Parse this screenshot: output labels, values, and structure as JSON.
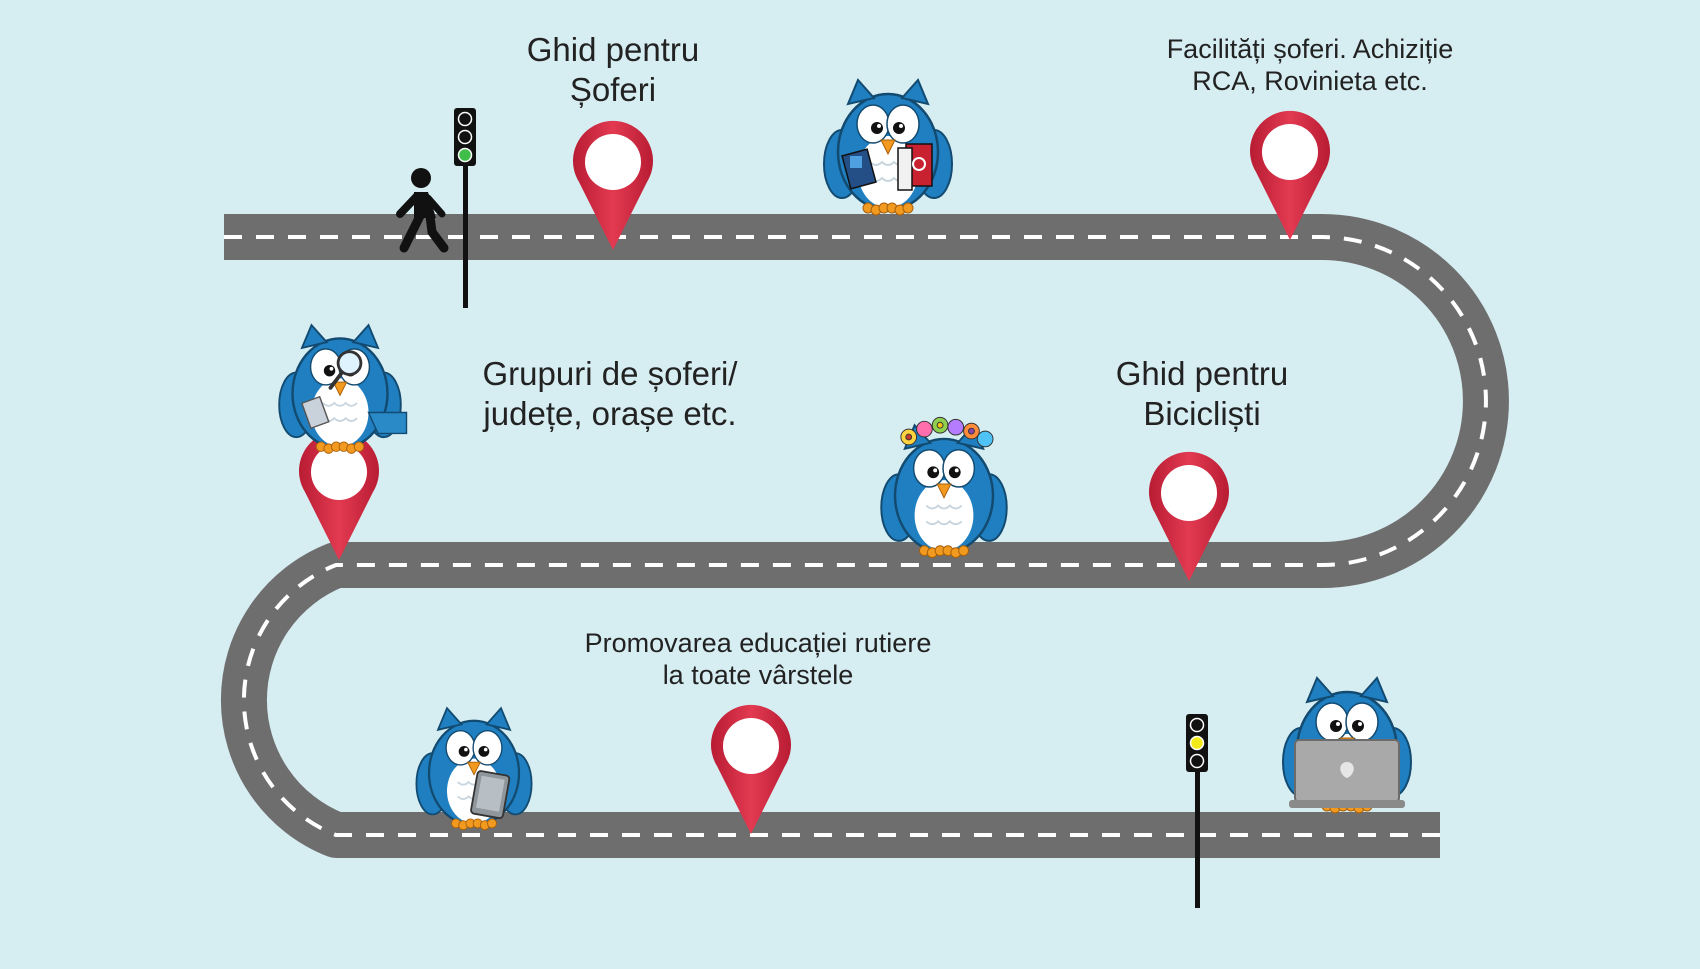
{
  "stops": [
    {
      "id": "ghid-soferi",
      "lines": [
        "Ghid pentru",
        "Șoferi"
      ]
    },
    {
      "id": "facilitati",
      "lines": [
        "Facilități șoferi. Achiziție",
        "RCA, Rovinieta etc."
      ]
    },
    {
      "id": "grupuri",
      "lines": [
        "Grupuri de șoferi/",
        "județe, orașe etc."
      ]
    },
    {
      "id": "ghid-biciclisti",
      "lines": [
        "Ghid pentru",
        "Bicicliști"
      ]
    },
    {
      "id": "promovarea",
      "lines": [
        "Promovarea educației rutiere",
        "la toate vârstele"
      ]
    }
  ],
  "colors": {
    "background": "#d6edf2",
    "road": "#6e6e6e",
    "road_marking": "#ffffff",
    "pin": "#d6293f",
    "owl_blue": "#1f7fc0",
    "traffic_light_green": "#3fbf4a",
    "traffic_light_yellow": "#f3ea1c"
  },
  "icons": [
    "pedestrian-icon",
    "traffic-light-icon",
    "map-pin-icon",
    "owl-with-books-icon",
    "owl-with-magnifier-icon",
    "owl-with-flower-crown-icon",
    "owl-with-tablet-icon",
    "owl-with-laptop-icon"
  ]
}
